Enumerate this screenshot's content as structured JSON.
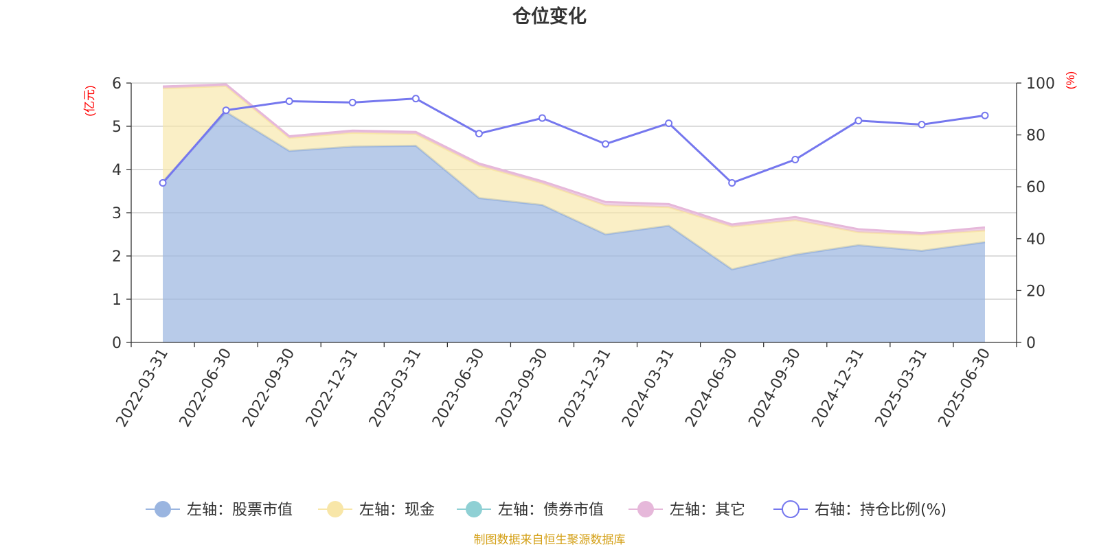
{
  "chart_data": {
    "type": "area",
    "title": "仓位变化",
    "source_note": "制图数据来自恒生聚源数据库",
    "left_axis": {
      "unit": "(亿元)",
      "ylim": [
        0,
        6
      ],
      "ticks": [
        "0",
        "1",
        "2",
        "3",
        "4",
        "5",
        "6"
      ]
    },
    "right_axis": {
      "unit": "(%)",
      "ylim": [
        0,
        100
      ],
      "ticks": [
        "0",
        "20",
        "40",
        "60",
        "80",
        "100"
      ]
    },
    "categories": [
      "2022-03-31",
      "2022-06-30",
      "2022-09-30",
      "2022-12-31",
      "2023-03-31",
      "2023-06-30",
      "2023-09-30",
      "2023-12-31",
      "2024-03-31",
      "2024-06-30",
      "2024-09-30",
      "2024-12-31",
      "2025-03-31",
      "2025-06-30"
    ],
    "series": [
      {
        "name": "左轴：股票市值",
        "axis": "left",
        "kind": "stacked-area",
        "color": "#9ab5e0",
        "values": [
          3.72,
          5.33,
          4.43,
          4.53,
          4.55,
          3.34,
          3.18,
          2.5,
          2.7,
          1.69,
          2.03,
          2.25,
          2.12,
          2.32
        ]
      },
      {
        "name": "左轴：现金",
        "axis": "left",
        "kind": "stacked-area",
        "color": "#f8e6a8",
        "values": [
          2.16,
          0.6,
          0.3,
          0.32,
          0.27,
          0.75,
          0.5,
          0.67,
          0.43,
          0.99,
          0.8,
          0.3,
          0.37,
          0.27
        ]
      },
      {
        "name": "左轴：债券市值",
        "axis": "left",
        "kind": "stacked-area",
        "color": "#8fd0d4",
        "values": [
          0,
          0,
          0,
          0,
          0,
          0,
          0,
          0,
          0,
          0,
          0,
          0,
          0,
          0
        ]
      },
      {
        "name": "左轴：其它",
        "axis": "left",
        "kind": "stacked-area",
        "color": "#e6b8da",
        "values": [
          0.04,
          0.04,
          0.04,
          0.05,
          0.05,
          0.05,
          0.05,
          0.08,
          0.07,
          0.05,
          0.07,
          0.07,
          0.04,
          0.07
        ]
      },
      {
        "name": "右轴：持仓比例(%)",
        "axis": "right",
        "kind": "line",
        "color": "#7577ee",
        "values": [
          61.5,
          89.5,
          93.0,
          92.5,
          94.0,
          80.5,
          86.5,
          76.5,
          84.5,
          61.5,
          70.5,
          85.5,
          84.0,
          87.5
        ]
      }
    ],
    "legend_position": "bottom",
    "grid": true
  }
}
